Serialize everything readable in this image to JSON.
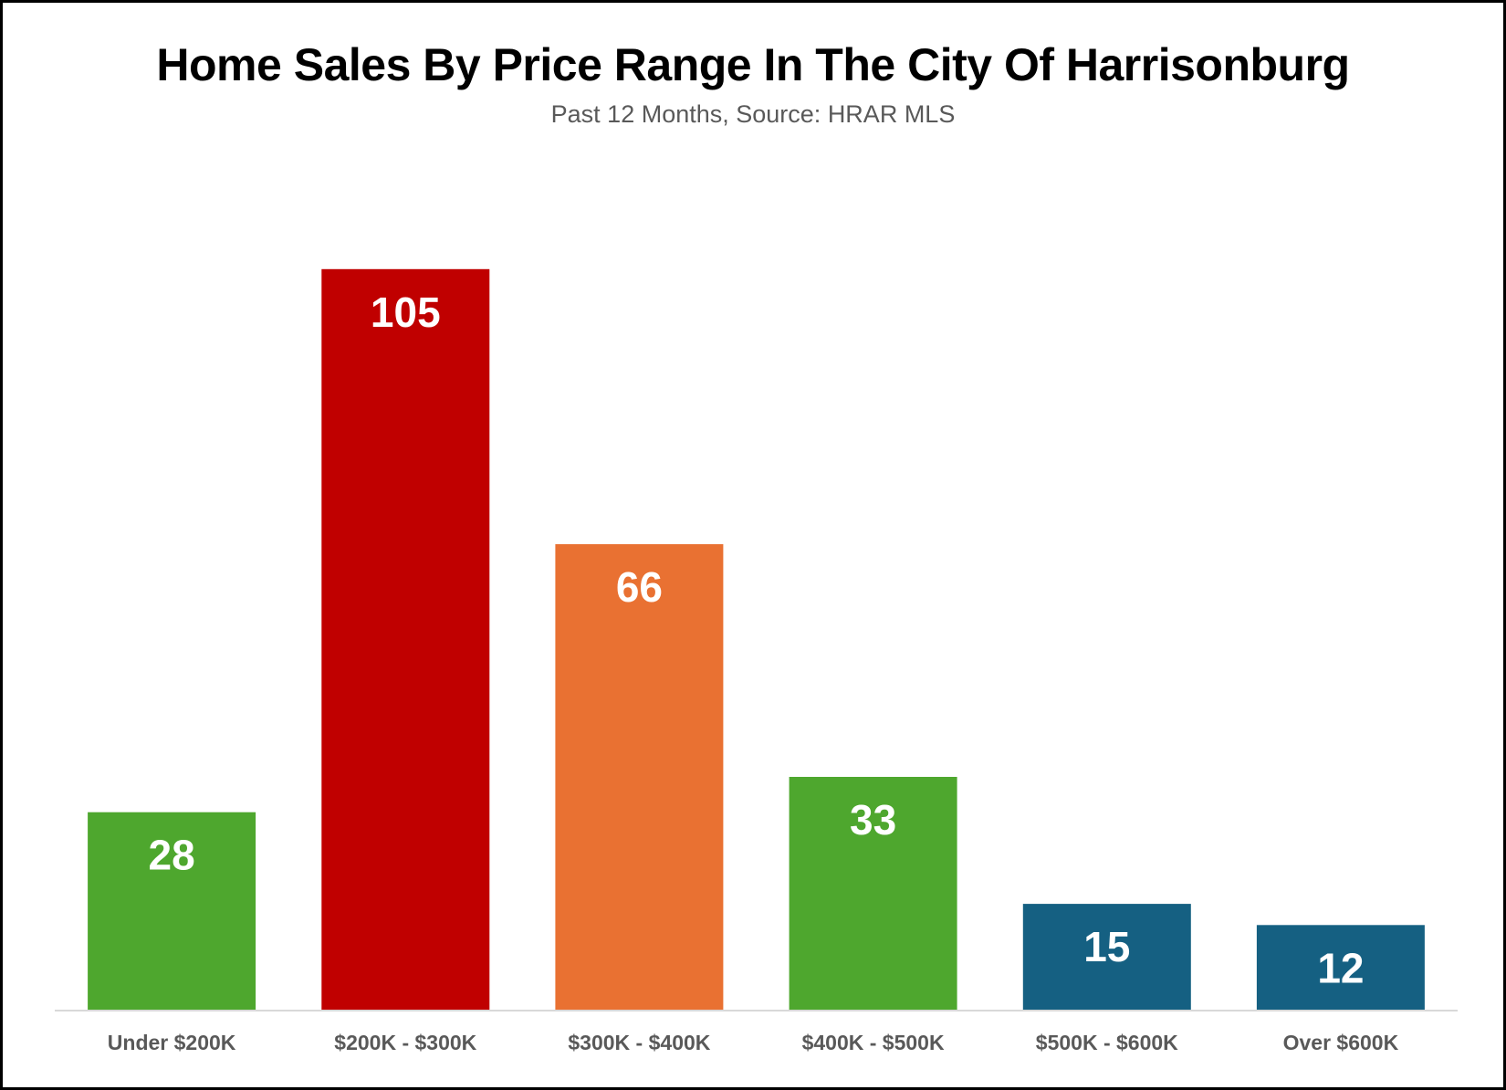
{
  "chart_data": {
    "type": "bar",
    "title": "Home Sales By Price Range In The City Of Harrisonburg",
    "subtitle": "Past 12 Months, Source: HRAR MLS",
    "categories": [
      "Under $200K",
      "$200K - $300K",
      "$300K - $400K",
      "$400K - $500K",
      "$500K - $600K",
      "Over $600K"
    ],
    "values": [
      28,
      105,
      66,
      33,
      15,
      12
    ],
    "colors": [
      "#4ea72e",
      "#c00000",
      "#e97132",
      "#4ea72e",
      "#156082",
      "#156082"
    ],
    "data_labels": true,
    "grid": false,
    "legend": "none",
    "ylim": [
      0,
      120
    ]
  }
}
